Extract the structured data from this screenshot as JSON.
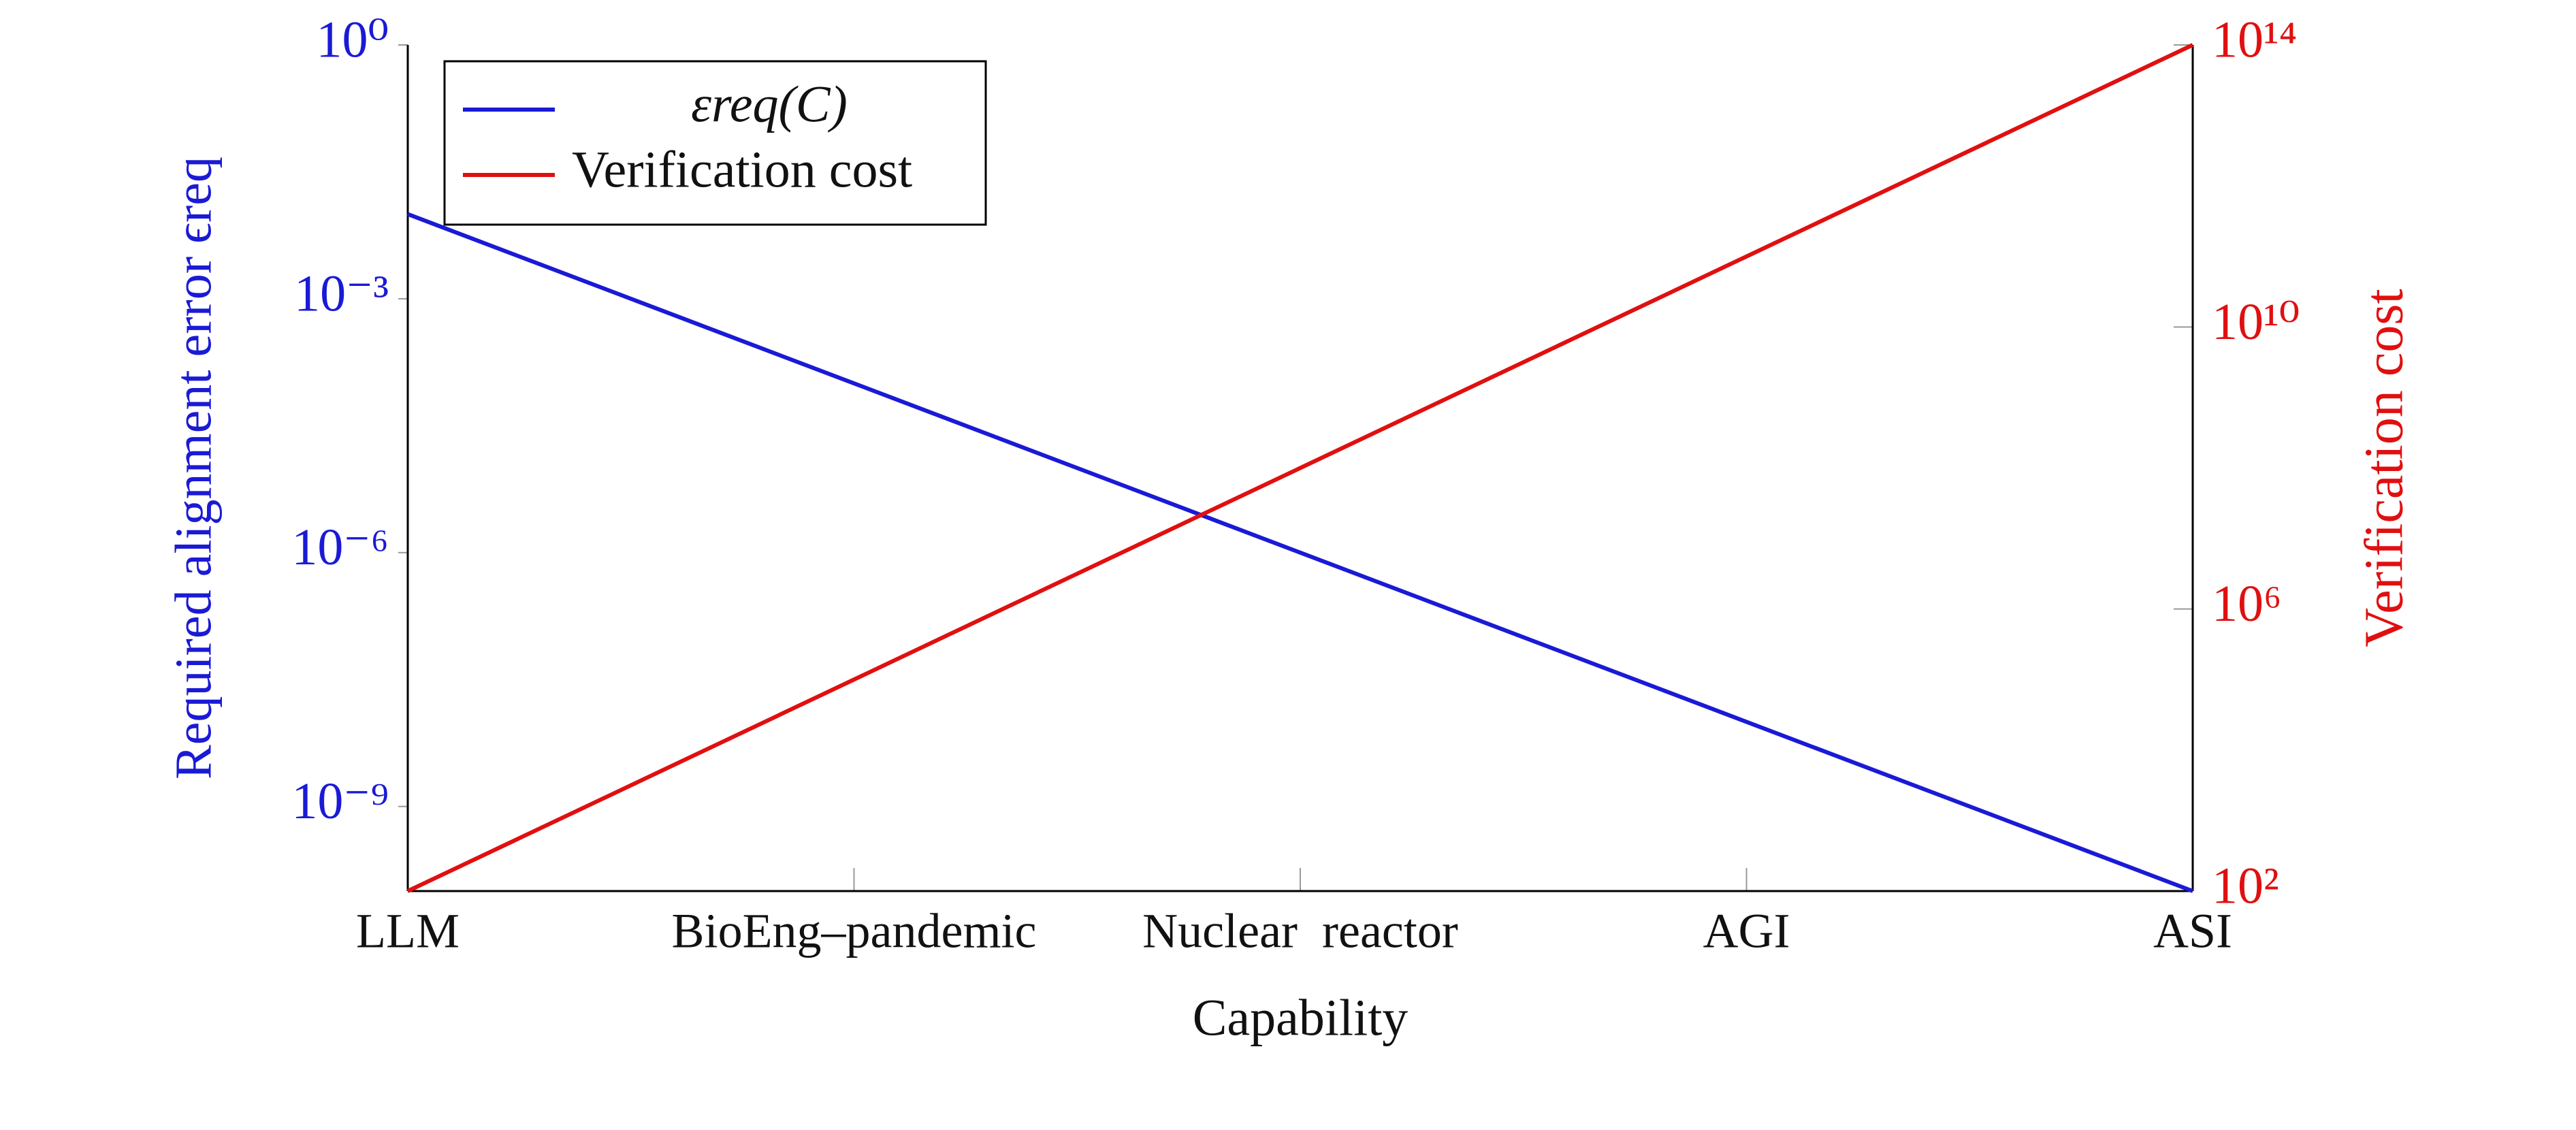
{
  "chart_data": {
    "type": "line",
    "xlabel": "Capability",
    "ylabel": "Required alignment error ϵreq",
    "y2label": "Verification cost",
    "categories": [
      "LLM",
      "BioEng–pandemic",
      "Nuclear  reactor",
      "AGI",
      "ASI"
    ],
    "series": [
      {
        "name": "εreq(C)",
        "color": "#1a1ad6",
        "values": [
          0.01,
          0.0001,
          1e-06,
          1e-08,
          1e-10
        ]
      },
      {
        "name": "Verification cost",
        "color": "#e01010",
        "axis": "y2",
        "values": [
          100,
          100000,
          100000000,
          100000000000,
          100000000000000
        ]
      }
    ],
    "ylim": [
      1e-10,
      1
    ],
    "ylog": true,
    "yticks": [
      {
        "value": 1,
        "label": "10⁰"
      },
      {
        "value": 0.001,
        "label": "10⁻³"
      },
      {
        "value": 1e-06,
        "label": "10⁻⁶"
      },
      {
        "value": 1e-09,
        "label": "10⁻⁹"
      }
    ],
    "y2lim": [
      100,
      100000000000000
    ],
    "y2log": true,
    "y2ticks": [
      {
        "value": 100,
        "label": "10²"
      },
      {
        "value": 1000000,
        "label": "10⁶"
      },
      {
        "value": 10000000000,
        "label": "10¹⁰"
      },
      {
        "value": 100000000000000,
        "label": "10¹⁴"
      }
    ],
    "ycolor": "#1a1ad6",
    "y2color": "#e01010",
    "legend": "upper left"
  }
}
